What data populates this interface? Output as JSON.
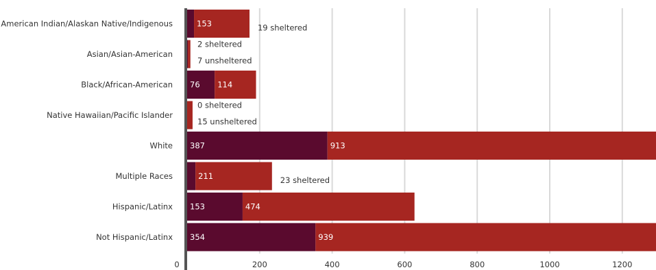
{
  "chart_data": {
    "type": "bar",
    "orientation": "horizontal",
    "stacked": true,
    "categories": [
      "American Indian/Alaskan Native/Indigenous",
      "Asian/Asian-American",
      "Black/African-American",
      "Native Hawaiian/Pacific Islander",
      "White",
      "Multiple Races",
      "Hispanic/Latinx",
      "Not Hispanic/Latinx"
    ],
    "series": [
      {
        "key": "sheltered",
        "color": "#5a0a2e",
        "values": [
          19,
          2,
          76,
          0,
          387,
          23,
          153,
          354
        ],
        "labels": [
          "",
          "",
          "76",
          "",
          "387",
          "",
          "153",
          "354"
        ]
      },
      {
        "key": "unsheltered",
        "color": "#a62621",
        "values": [
          153,
          7,
          114,
          15,
          913,
          211,
          474,
          939
        ],
        "labels": [
          "153",
          "",
          "114",
          "",
          "913",
          "211",
          "474",
          "939"
        ]
      }
    ],
    "notes": [
      {
        "category": 0,
        "lines": [
          "19 sheltered"
        ]
      },
      {
        "category": 1,
        "lines": [
          "2 sheltered",
          "7 unsheltered"
        ]
      },
      {
        "category": 3,
        "lines": [
          "0 sheltered",
          "15 unsheltered"
        ]
      },
      {
        "category": 5,
        "lines": [
          "23 sheltered"
        ]
      }
    ],
    "x_ticks": [
      0,
      200,
      400,
      600,
      800,
      1000,
      1200
    ],
    "xlim": [
      0,
      1293
    ],
    "grid": true,
    "colors": {
      "axis": "#555555",
      "grid": "#d9d9d9"
    }
  }
}
